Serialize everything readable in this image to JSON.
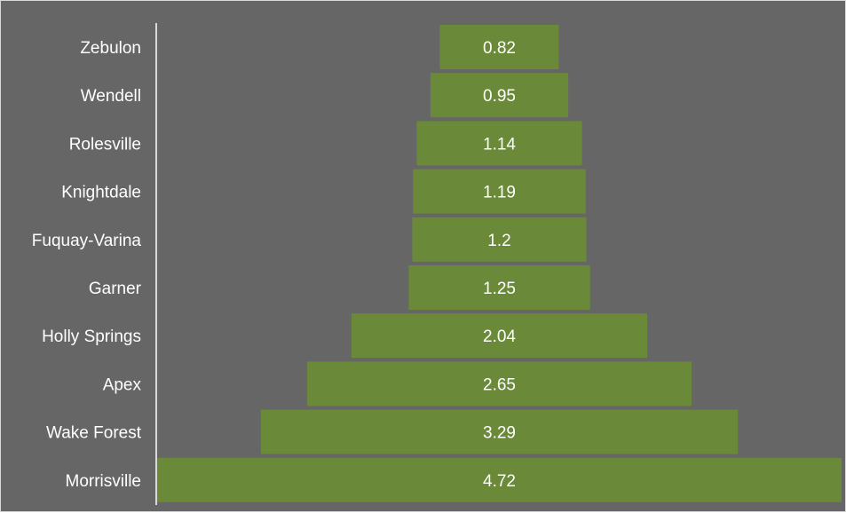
{
  "chart_data": {
    "type": "bar",
    "orientation": "horizontal-centered-funnel",
    "categories": [
      "Zebulon",
      "Wendell",
      "Rolesville",
      "Knightdale",
      "Fuquay-Varina",
      "Garner",
      "Holly Springs",
      "Apex",
      "Wake Forest",
      "Morrisville"
    ],
    "values": [
      0.82,
      0.95,
      1.14,
      1.19,
      1.2,
      1.25,
      2.04,
      2.65,
      3.29,
      4.72
    ],
    "value_labels": [
      "0.82",
      "0.95",
      "1.14",
      "1.19",
      "1.2",
      "1.25",
      "2.04",
      "2.65",
      "3.29",
      "4.72"
    ],
    "title": "",
    "xlabel": "",
    "ylabel": "",
    "grid": false,
    "legend": "none",
    "colors": {
      "background": "#666666",
      "bar": "#6a8a39",
      "text": "#ffffff",
      "axis": "#ffffff"
    }
  }
}
